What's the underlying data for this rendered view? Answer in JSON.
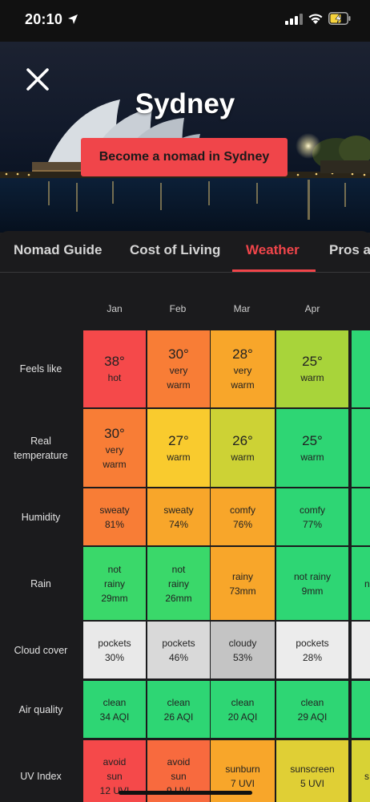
{
  "status_bar": {
    "time": "20:10"
  },
  "hero": {
    "city": "Sydney",
    "cta_label": "Become a nomad in Sydney"
  },
  "tabs": [
    {
      "label": "Nomad Guide",
      "active": false
    },
    {
      "label": "Cost of Living",
      "active": false
    },
    {
      "label": "Weather",
      "active": true
    },
    {
      "label": "Pros a",
      "active": false
    }
  ],
  "months": [
    "Jan",
    "Feb",
    "Mar",
    "Apr"
  ],
  "row_labels": {
    "feels_like": "Feels like",
    "real_temp_1": "Real",
    "real_temp_2": "temperature",
    "humidity": "Humidity",
    "rain": "Rain",
    "cloud": "Cloud cover",
    "air": "Air quality",
    "uv": "UV Index"
  },
  "rows": {
    "feels_like": [
      {
        "big": "38°",
        "l1": "hot",
        "color": "#f5494a"
      },
      {
        "big": "30°",
        "l1": "very",
        "l2": "warm",
        "color": "#f87d36"
      },
      {
        "big": "28°",
        "l1": "very",
        "l2": "warm",
        "color": "#f8a62a"
      },
      {
        "big": "25°",
        "l1": "warm",
        "color": "#a8d43a"
      }
    ],
    "real_temp": [
      {
        "big": "30°",
        "l1": "very",
        "l2": "warm",
        "color": "#f87d36"
      },
      {
        "big": "27°",
        "l1": "warm",
        "color": "#f9cb2e"
      },
      {
        "big": "26°",
        "l1": "warm",
        "color": "#cdd235"
      },
      {
        "big": "25°",
        "l1": "warm",
        "color": "#2ed674"
      }
    ],
    "humidity": [
      {
        "l1": "sweaty",
        "l2": "81%",
        "color": "#f87d36"
      },
      {
        "l1": "sweaty",
        "l2": "74%",
        "color": "#f8a62a"
      },
      {
        "l1": "comfy",
        "l2": "76%",
        "color": "#f8a62a"
      },
      {
        "l1": "comfy",
        "l2": "77%",
        "color": "#2ed674"
      }
    ],
    "rain": [
      {
        "l1": "not",
        "l2": "rainy",
        "l3": "29mm",
        "color": "#3ad86a"
      },
      {
        "l1": "not",
        "l2": "rainy",
        "l3": "26mm",
        "color": "#3ad86a"
      },
      {
        "l1": "rainy",
        "l2": "73mm",
        "color": "#f8a62a"
      },
      {
        "l1": "not rainy",
        "l2": "9mm",
        "color": "#2ed674"
      }
    ],
    "cloud": [
      {
        "l1": "pockets",
        "l2": "30%",
        "color": "#e9e9e9"
      },
      {
        "l1": "pockets",
        "l2": "46%",
        "color": "#d9d9d9"
      },
      {
        "l1": "cloudy",
        "l2": "53%",
        "color": "#c4c4c4"
      },
      {
        "l1": "pockets",
        "l2": "28%",
        "color": "#ececec"
      }
    ],
    "air": [
      {
        "l1": "clean",
        "l2": "34 AQI",
        "color": "#2ed674"
      },
      {
        "l1": "clean",
        "l2": "26 AQI",
        "color": "#2ed674"
      },
      {
        "l1": "clean",
        "l2": "20 AQI",
        "color": "#2ed674"
      },
      {
        "l1": "clean",
        "l2": "29 AQI",
        "color": "#2ed674"
      }
    ],
    "uv": [
      {
        "l1": "avoid",
        "l2": "sun",
        "l3": "12 UVI",
        "color": "#f5494a"
      },
      {
        "l1": "avoid",
        "l2": "sun",
        "l3": "9 UVI",
        "color": "#f86a3e"
      },
      {
        "l1": "sunburn",
        "l2": "7 UVI",
        "color": "#f8a62a"
      },
      {
        "l1": "sunscreen",
        "l2": "5 UVI",
        "color": "#e0cf35"
      }
    ]
  },
  "partial_column_colors": {
    "feels_like": "#2ed674",
    "real_temp": "#2ed674",
    "humidity": "#2ed674",
    "rain": "#2ed674",
    "cloud": "#ececec",
    "air": "#2ed674",
    "uv": "#d8d235"
  },
  "partial_column_text": {
    "rain": "n",
    "uv": "s"
  },
  "accent_color": "#f0454a"
}
